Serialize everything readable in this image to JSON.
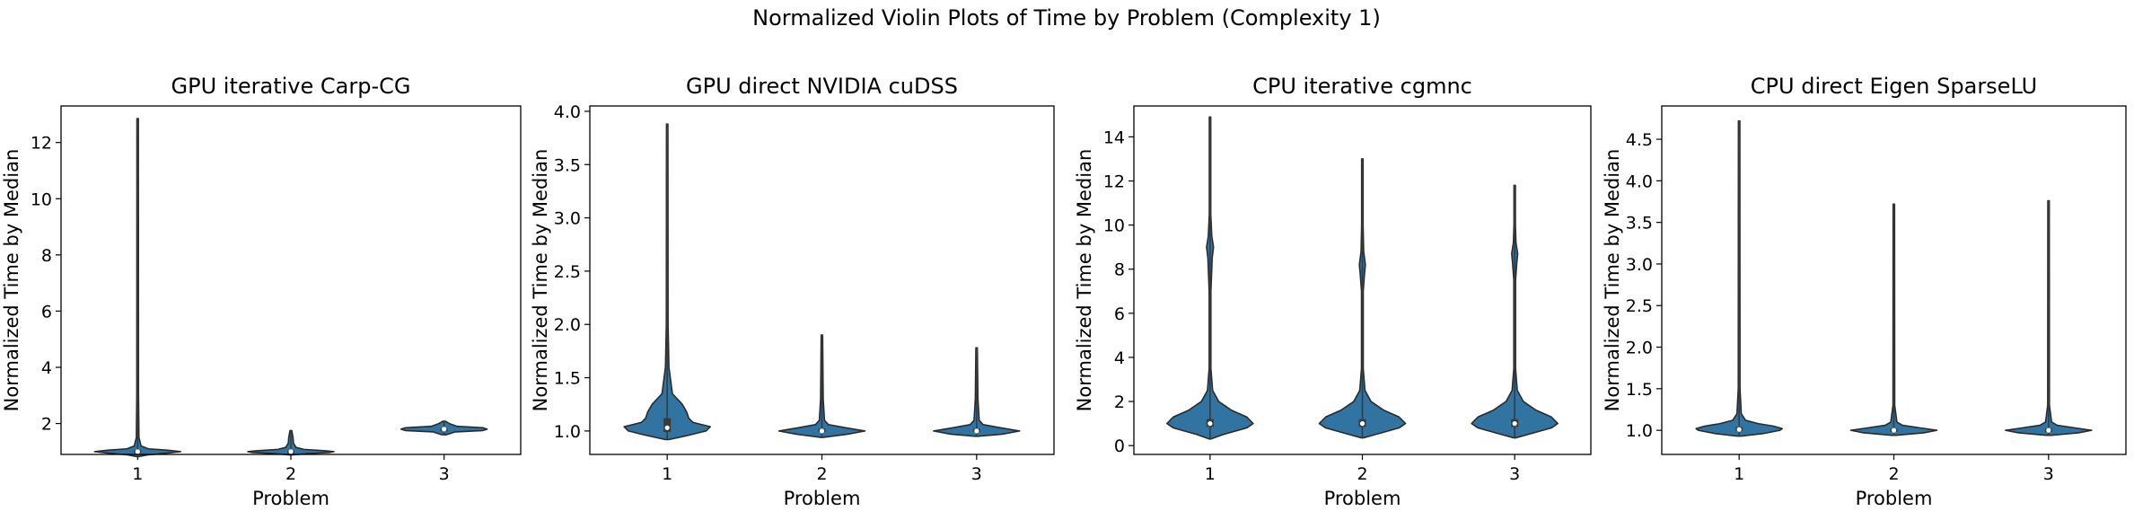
{
  "figure": {
    "title": "Normalized Violin Plots of Time by Problem (Complexity 1)"
  },
  "style": {
    "violin_fill": "#3274a1",
    "violin_edge": "#2a2a2a",
    "box_color": "#3a3a3a",
    "median_color": "#ffffff"
  },
  "chart_data": [
    {
      "type": "violin",
      "title": "GPU iterative Carp-CG",
      "xlabel": "Problem",
      "ylabel": "Normalized Time by Median",
      "categories": [
        "1",
        "2",
        "3"
      ],
      "ylim": [
        0.9,
        13.3
      ],
      "yticks": [
        2,
        4,
        6,
        8,
        10,
        12
      ],
      "tick_labels": [
        "2",
        "4",
        "6",
        "8",
        "10",
        "12"
      ],
      "grid": false,
      "violins": [
        {
          "category": "1",
          "min": 0.82,
          "max": 12.85,
          "q1": 0.95,
          "median": 1.0,
          "q3": 1.05,
          "profile": [
            [
              0.82,
              0
            ],
            [
              0.88,
              0.22
            ],
            [
              0.95,
              0.7
            ],
            [
              1.0,
              1.0
            ],
            [
              1.05,
              0.7
            ],
            [
              1.1,
              0.25
            ],
            [
              1.2,
              0.08
            ],
            [
              1.5,
              0.03
            ],
            [
              3,
              0.02
            ],
            [
              12.85,
              0.015
            ]
          ]
        },
        {
          "category": "2",
          "min": 0.88,
          "max": 1.75,
          "q1": 0.97,
          "median": 1.0,
          "q3": 1.03,
          "profile": [
            [
              0.88,
              0
            ],
            [
              0.93,
              0.4
            ],
            [
              0.97,
              0.9
            ],
            [
              1.0,
              1.0
            ],
            [
              1.03,
              0.8
            ],
            [
              1.08,
              0.3
            ],
            [
              1.15,
              0.12
            ],
            [
              1.3,
              0.06
            ],
            [
              1.5,
              0.05
            ],
            [
              1.75,
              0.02
            ]
          ]
        },
        {
          "category": "3",
          "min": 1.6,
          "max": 2.08,
          "q1": 1.78,
          "median": 1.8,
          "q3": 1.82,
          "profile": [
            [
              1.6,
              0.05
            ],
            [
              1.7,
              0.25
            ],
            [
              1.75,
              0.9
            ],
            [
              1.8,
              1.0
            ],
            [
              1.85,
              0.9
            ],
            [
              1.9,
              0.3
            ],
            [
              2.0,
              0.12
            ],
            [
              2.08,
              0.03
            ]
          ]
        }
      ]
    },
    {
      "type": "violin",
      "title": "GPU direct NVIDIA cuDSS",
      "xlabel": "Problem",
      "ylabel": "Normalized Time by Median",
      "categories": [
        "1",
        "2",
        "3"
      ],
      "ylim": [
        0.78,
        4.05
      ],
      "yticks": [
        1.0,
        1.5,
        2.0,
        2.5,
        3.0,
        3.5,
        4.0
      ],
      "tick_labels": [
        "1.0",
        "1.5",
        "2.0",
        "2.5",
        "3.0",
        "3.5",
        "4.0"
      ],
      "grid": false,
      "violins": [
        {
          "category": "1",
          "min": 0.92,
          "max": 3.88,
          "q1": 0.99,
          "median": 1.03,
          "q3": 1.12,
          "profile": [
            [
              0.92,
              0.05
            ],
            [
              0.96,
              0.5
            ],
            [
              1.0,
              0.9
            ],
            [
              1.04,
              1.0
            ],
            [
              1.08,
              0.6
            ],
            [
              1.12,
              0.5
            ],
            [
              1.18,
              0.45
            ],
            [
              1.25,
              0.35
            ],
            [
              1.35,
              0.12
            ],
            [
              1.6,
              0.04
            ],
            [
              2.0,
              0.02
            ],
            [
              3.88,
              0.01
            ]
          ]
        },
        {
          "category": "2",
          "min": 0.94,
          "max": 1.9,
          "q1": 0.99,
          "median": 1.0,
          "q3": 1.02,
          "profile": [
            [
              0.94,
              0.02
            ],
            [
              0.97,
              0.6
            ],
            [
              1.0,
              1.0
            ],
            [
              1.03,
              0.55
            ],
            [
              1.06,
              0.15
            ],
            [
              1.1,
              0.06
            ],
            [
              1.3,
              0.03
            ],
            [
              1.9,
              0.01
            ]
          ]
        },
        {
          "category": "3",
          "min": 0.95,
          "max": 1.78,
          "q1": 0.99,
          "median": 1.0,
          "q3": 1.02,
          "profile": [
            [
              0.95,
              0.02
            ],
            [
              0.97,
              0.6
            ],
            [
              1.0,
              1.0
            ],
            [
              1.03,
              0.55
            ],
            [
              1.06,
              0.15
            ],
            [
              1.1,
              0.06
            ],
            [
              1.3,
              0.03
            ],
            [
              1.78,
              0.01
            ]
          ]
        }
      ]
    },
    {
      "type": "violin",
      "title": "CPU iterative cgmnc",
      "xlabel": "Problem",
      "ylabel": "Normalized Time by Median",
      "categories": [
        "1",
        "2",
        "3"
      ],
      "ylim": [
        -0.4,
        15.4
      ],
      "yticks": [
        0,
        2,
        4,
        6,
        8,
        10,
        12,
        14
      ],
      "tick_labels": [
        "0",
        "2",
        "4",
        "6",
        "8",
        "10",
        "12",
        "14"
      ],
      "grid": false,
      "violins": [
        {
          "category": "1",
          "min": 0.3,
          "max": 14.9,
          "q1": 0.85,
          "median": 1.0,
          "q3": 1.2,
          "profile": [
            [
              0.3,
              0.02
            ],
            [
              0.5,
              0.3
            ],
            [
              0.8,
              0.85
            ],
            [
              1.0,
              1.0
            ],
            [
              1.3,
              0.85
            ],
            [
              1.6,
              0.5
            ],
            [
              2.0,
              0.2
            ],
            [
              2.5,
              0.06
            ],
            [
              3.5,
              0.02
            ],
            [
              7,
              0.02
            ],
            [
              8.5,
              0.05
            ],
            [
              9.0,
              0.08
            ],
            [
              9.5,
              0.04
            ],
            [
              10.5,
              0.015
            ],
            [
              14.9,
              0.01
            ]
          ]
        },
        {
          "category": "2",
          "min": 0.35,
          "max": 13.0,
          "q1": 0.85,
          "median": 1.0,
          "q3": 1.2,
          "profile": [
            [
              0.35,
              0.02
            ],
            [
              0.5,
              0.3
            ],
            [
              0.8,
              0.85
            ],
            [
              1.0,
              1.0
            ],
            [
              1.3,
              0.85
            ],
            [
              1.6,
              0.5
            ],
            [
              2.0,
              0.2
            ],
            [
              2.5,
              0.06
            ],
            [
              3.5,
              0.02
            ],
            [
              7,
              0.02
            ],
            [
              7.8,
              0.05
            ],
            [
              8.2,
              0.07
            ],
            [
              8.8,
              0.03
            ],
            [
              10,
              0.015
            ],
            [
              13.0,
              0.01
            ]
          ]
        },
        {
          "category": "3",
          "min": 0.35,
          "max": 11.8,
          "q1": 0.85,
          "median": 1.0,
          "q3": 1.2,
          "profile": [
            [
              0.35,
              0.02
            ],
            [
              0.5,
              0.3
            ],
            [
              0.8,
              0.85
            ],
            [
              1.0,
              1.0
            ],
            [
              1.3,
              0.85
            ],
            [
              1.6,
              0.5
            ],
            [
              2.0,
              0.2
            ],
            [
              2.5,
              0.06
            ],
            [
              3.5,
              0.02
            ],
            [
              7.5,
              0.02
            ],
            [
              8.3,
              0.05
            ],
            [
              8.7,
              0.07
            ],
            [
              9.2,
              0.03
            ],
            [
              10,
              0.015
            ],
            [
              11.8,
              0.01
            ]
          ]
        }
      ]
    },
    {
      "type": "violin",
      "title": "CPU direct Eigen SparseLU",
      "xlabel": "Problem",
      "ylabel": "Normalized Time by Median",
      "categories": [
        "1",
        "2",
        "3"
      ],
      "ylim": [
        0.71,
        4.9
      ],
      "yticks": [
        1.0,
        1.5,
        2.0,
        2.5,
        3.0,
        3.5,
        4.0,
        4.5
      ],
      "tick_labels": [
        "1.0",
        "1.5",
        "2.0",
        "2.5",
        "3.0",
        "3.5",
        "4.0",
        "4.5"
      ],
      "grid": false,
      "violins": [
        {
          "category": "1",
          "min": 0.93,
          "max": 4.72,
          "q1": 0.99,
          "median": 1.01,
          "q3": 1.04,
          "profile": [
            [
              0.93,
              0.05
            ],
            [
              0.96,
              0.55
            ],
            [
              1.0,
              0.95
            ],
            [
              1.02,
              1.0
            ],
            [
              1.05,
              0.8
            ],
            [
              1.08,
              0.45
            ],
            [
              1.12,
              0.15
            ],
            [
              1.2,
              0.05
            ],
            [
              1.5,
              0.02
            ],
            [
              4.72,
              0.01
            ]
          ]
        },
        {
          "category": "2",
          "min": 0.94,
          "max": 3.72,
          "q1": 0.98,
          "median": 1.0,
          "q3": 1.02,
          "profile": [
            [
              0.94,
              0.05
            ],
            [
              0.97,
              0.7
            ],
            [
              1.0,
              1.0
            ],
            [
              1.03,
              0.6
            ],
            [
              1.06,
              0.2
            ],
            [
              1.1,
              0.07
            ],
            [
              1.3,
              0.02
            ],
            [
              3.72,
              0.01
            ]
          ]
        },
        {
          "category": "3",
          "min": 0.94,
          "max": 3.76,
          "q1": 0.98,
          "median": 1.0,
          "q3": 1.02,
          "profile": [
            [
              0.94,
              0.05
            ],
            [
              0.97,
              0.7
            ],
            [
              1.0,
              1.0
            ],
            [
              1.03,
              0.6
            ],
            [
              1.06,
              0.2
            ],
            [
              1.1,
              0.07
            ],
            [
              1.3,
              0.02
            ],
            [
              3.76,
              0.01
            ]
          ]
        }
      ]
    }
  ]
}
